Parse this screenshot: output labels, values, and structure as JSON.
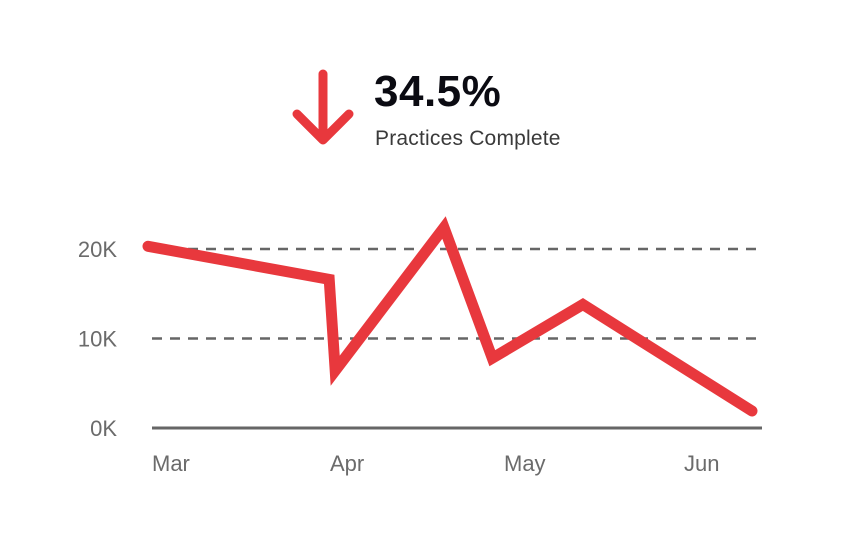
{
  "kpi": {
    "value": "34.5%",
    "label": "Practices Complete",
    "trend_icon": "arrow-down-icon",
    "trend_color": "#e8383d"
  },
  "colors": {
    "series": "#e8383d",
    "grid": "#666666",
    "axis_text": "#6b6b6b"
  },
  "chart_data": {
    "type": "line",
    "title": "",
    "xlabel": "",
    "ylabel": "",
    "x_ticks": [
      "Mar",
      "Apr",
      "May",
      "Jun"
    ],
    "y_ticks": [
      "0K",
      "10K",
      "20K"
    ],
    "ylim": [
      0,
      20000
    ],
    "grid": true,
    "legend": "none",
    "series": [
      {
        "points": [
          {
            "x": "2024-03-01",
            "y": 20300
          },
          {
            "x": "2024-03-31",
            "y": 16600
          },
          {
            "x": "2024-04-01",
            "y": 6400
          },
          {
            "x": "2024-04-19",
            "y": 22400
          },
          {
            "x": "2024-04-27",
            "y": 7800
          },
          {
            "x": "2024-05-12",
            "y": 13800
          },
          {
            "x": "2024-06-09",
            "y": 1900
          }
        ]
      }
    ]
  }
}
